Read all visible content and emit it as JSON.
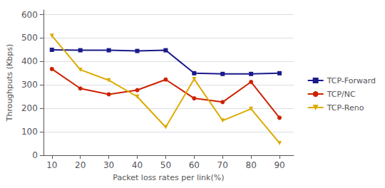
{
  "chart_data": {
    "type": "line",
    "xlabel": "Packet loss rates per link(%)",
    "ylabel": "Throughputs (Kbps)",
    "x": [
      10,
      20,
      30,
      40,
      50,
      60,
      70,
      80,
      90
    ],
    "series": [
      {
        "name": "TCP-Forward",
        "color": "#1a1a8c",
        "marker": "square",
        "values": [
          450,
          448,
          448,
          445,
          448,
          350,
          347,
          347,
          350
        ]
      },
      {
        "name": "TCP/NC",
        "color": "#cc2200",
        "marker": "circle",
        "values": [
          368,
          285,
          260,
          278,
          323,
          243,
          227,
          313,
          160
        ]
      },
      {
        "name": "TCP-Reno",
        "color": "#ddaa00",
        "marker": "triangle_down",
        "values": [
          510,
          365,
          320,
          250,
          120,
          325,
          148,
          198,
          52
        ]
      }
    ],
    "xlim": [
      7,
      95
    ],
    "xticks": [
      10,
      20,
      30,
      40,
      50,
      60,
      70,
      80,
      90
    ],
    "ylim": [
      0,
      620
    ],
    "yticks": [
      0,
      100,
      200,
      300,
      400,
      500,
      600
    ],
    "grid": true,
    "legend": "right"
  }
}
